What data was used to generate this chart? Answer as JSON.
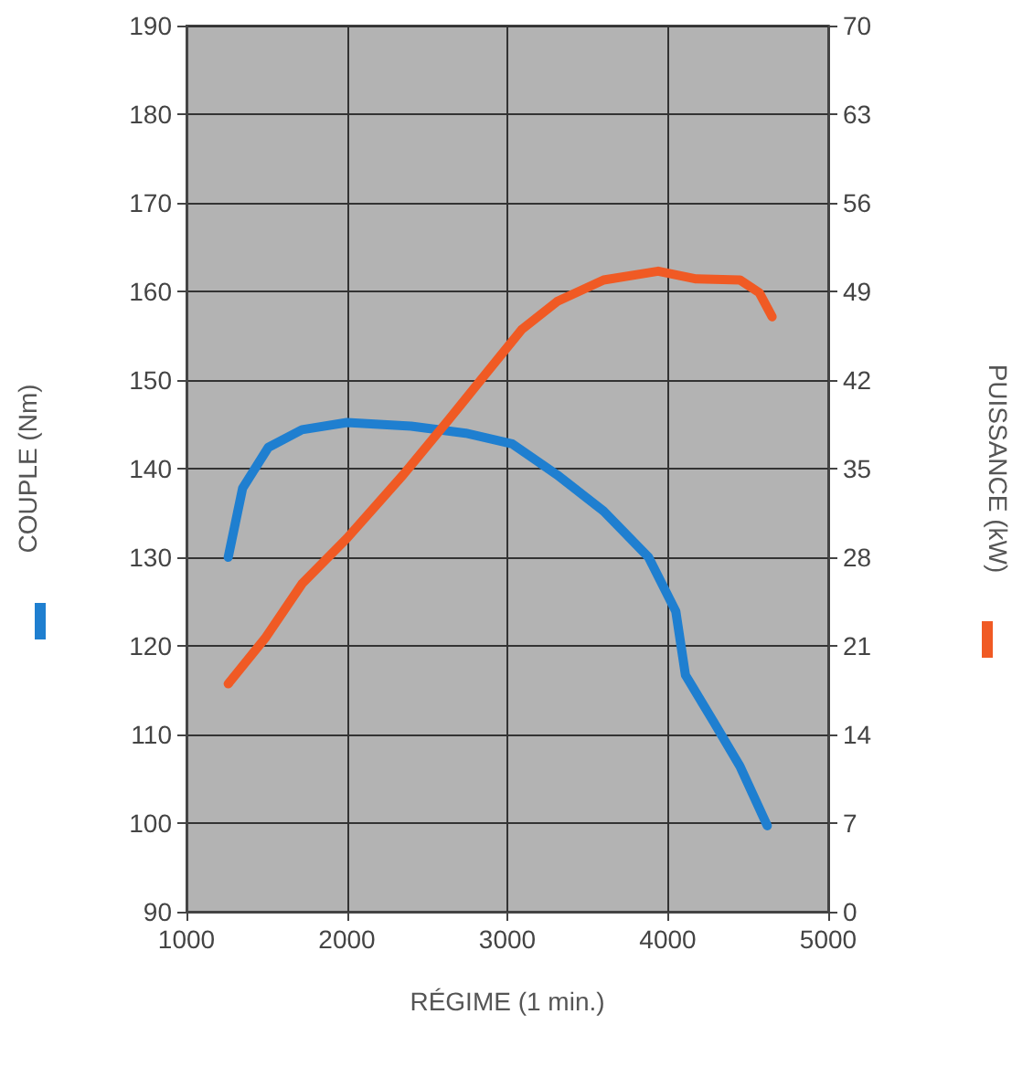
{
  "chart_data": {
    "type": "line",
    "xlabel": "RÉGIME (1 min.)",
    "ylabel": "COUPLE (Nm)",
    "y2label": "PUISSANCE (kW)",
    "xlim": [
      1000,
      5000
    ],
    "xticks": [
      1000,
      2000,
      3000,
      4000,
      5000
    ],
    "ylim": [
      90,
      190
    ],
    "yticks": [
      90,
      100,
      110,
      120,
      130,
      140,
      150,
      160,
      170,
      180,
      190
    ],
    "y2lim": [
      0,
      70
    ],
    "y2ticks": [
      0,
      7,
      14,
      21,
      28,
      35,
      42,
      49,
      56,
      63,
      70
    ],
    "grid": true,
    "marker": "none",
    "line_style": "solid",
    "series": [
      {
        "color": "#1f7fd0",
        "x": [
          1260,
          1350,
          1510,
          1720,
          2000,
          2400,
          2740,
          3030,
          3310,
          3600,
          3880,
          4050,
          4110,
          4280,
          4450,
          4620
        ],
        "values": [
          130,
          137.8,
          142.4,
          144.4,
          145.2,
          144.8,
          144,
          142.8,
          139.3,
          135.2,
          130,
          123.9,
          116.7,
          111.6,
          106.4,
          99.7
        ]
      },
      {
        "color": "#f05a24",
        "axis": "y2",
        "x": [
          1260,
          1490,
          1720,
          2000,
          2350,
          2630,
          2860,
          3090,
          3310,
          3600,
          3940,
          4170,
          4450,
          4570,
          4650
        ],
        "values": [
          18,
          21.6,
          25.9,
          29.5,
          34.5,
          38.8,
          42.4,
          46,
          48.2,
          49.9,
          50.6,
          50,
          49.9,
          48.9,
          47
        ]
      }
    ]
  }
}
